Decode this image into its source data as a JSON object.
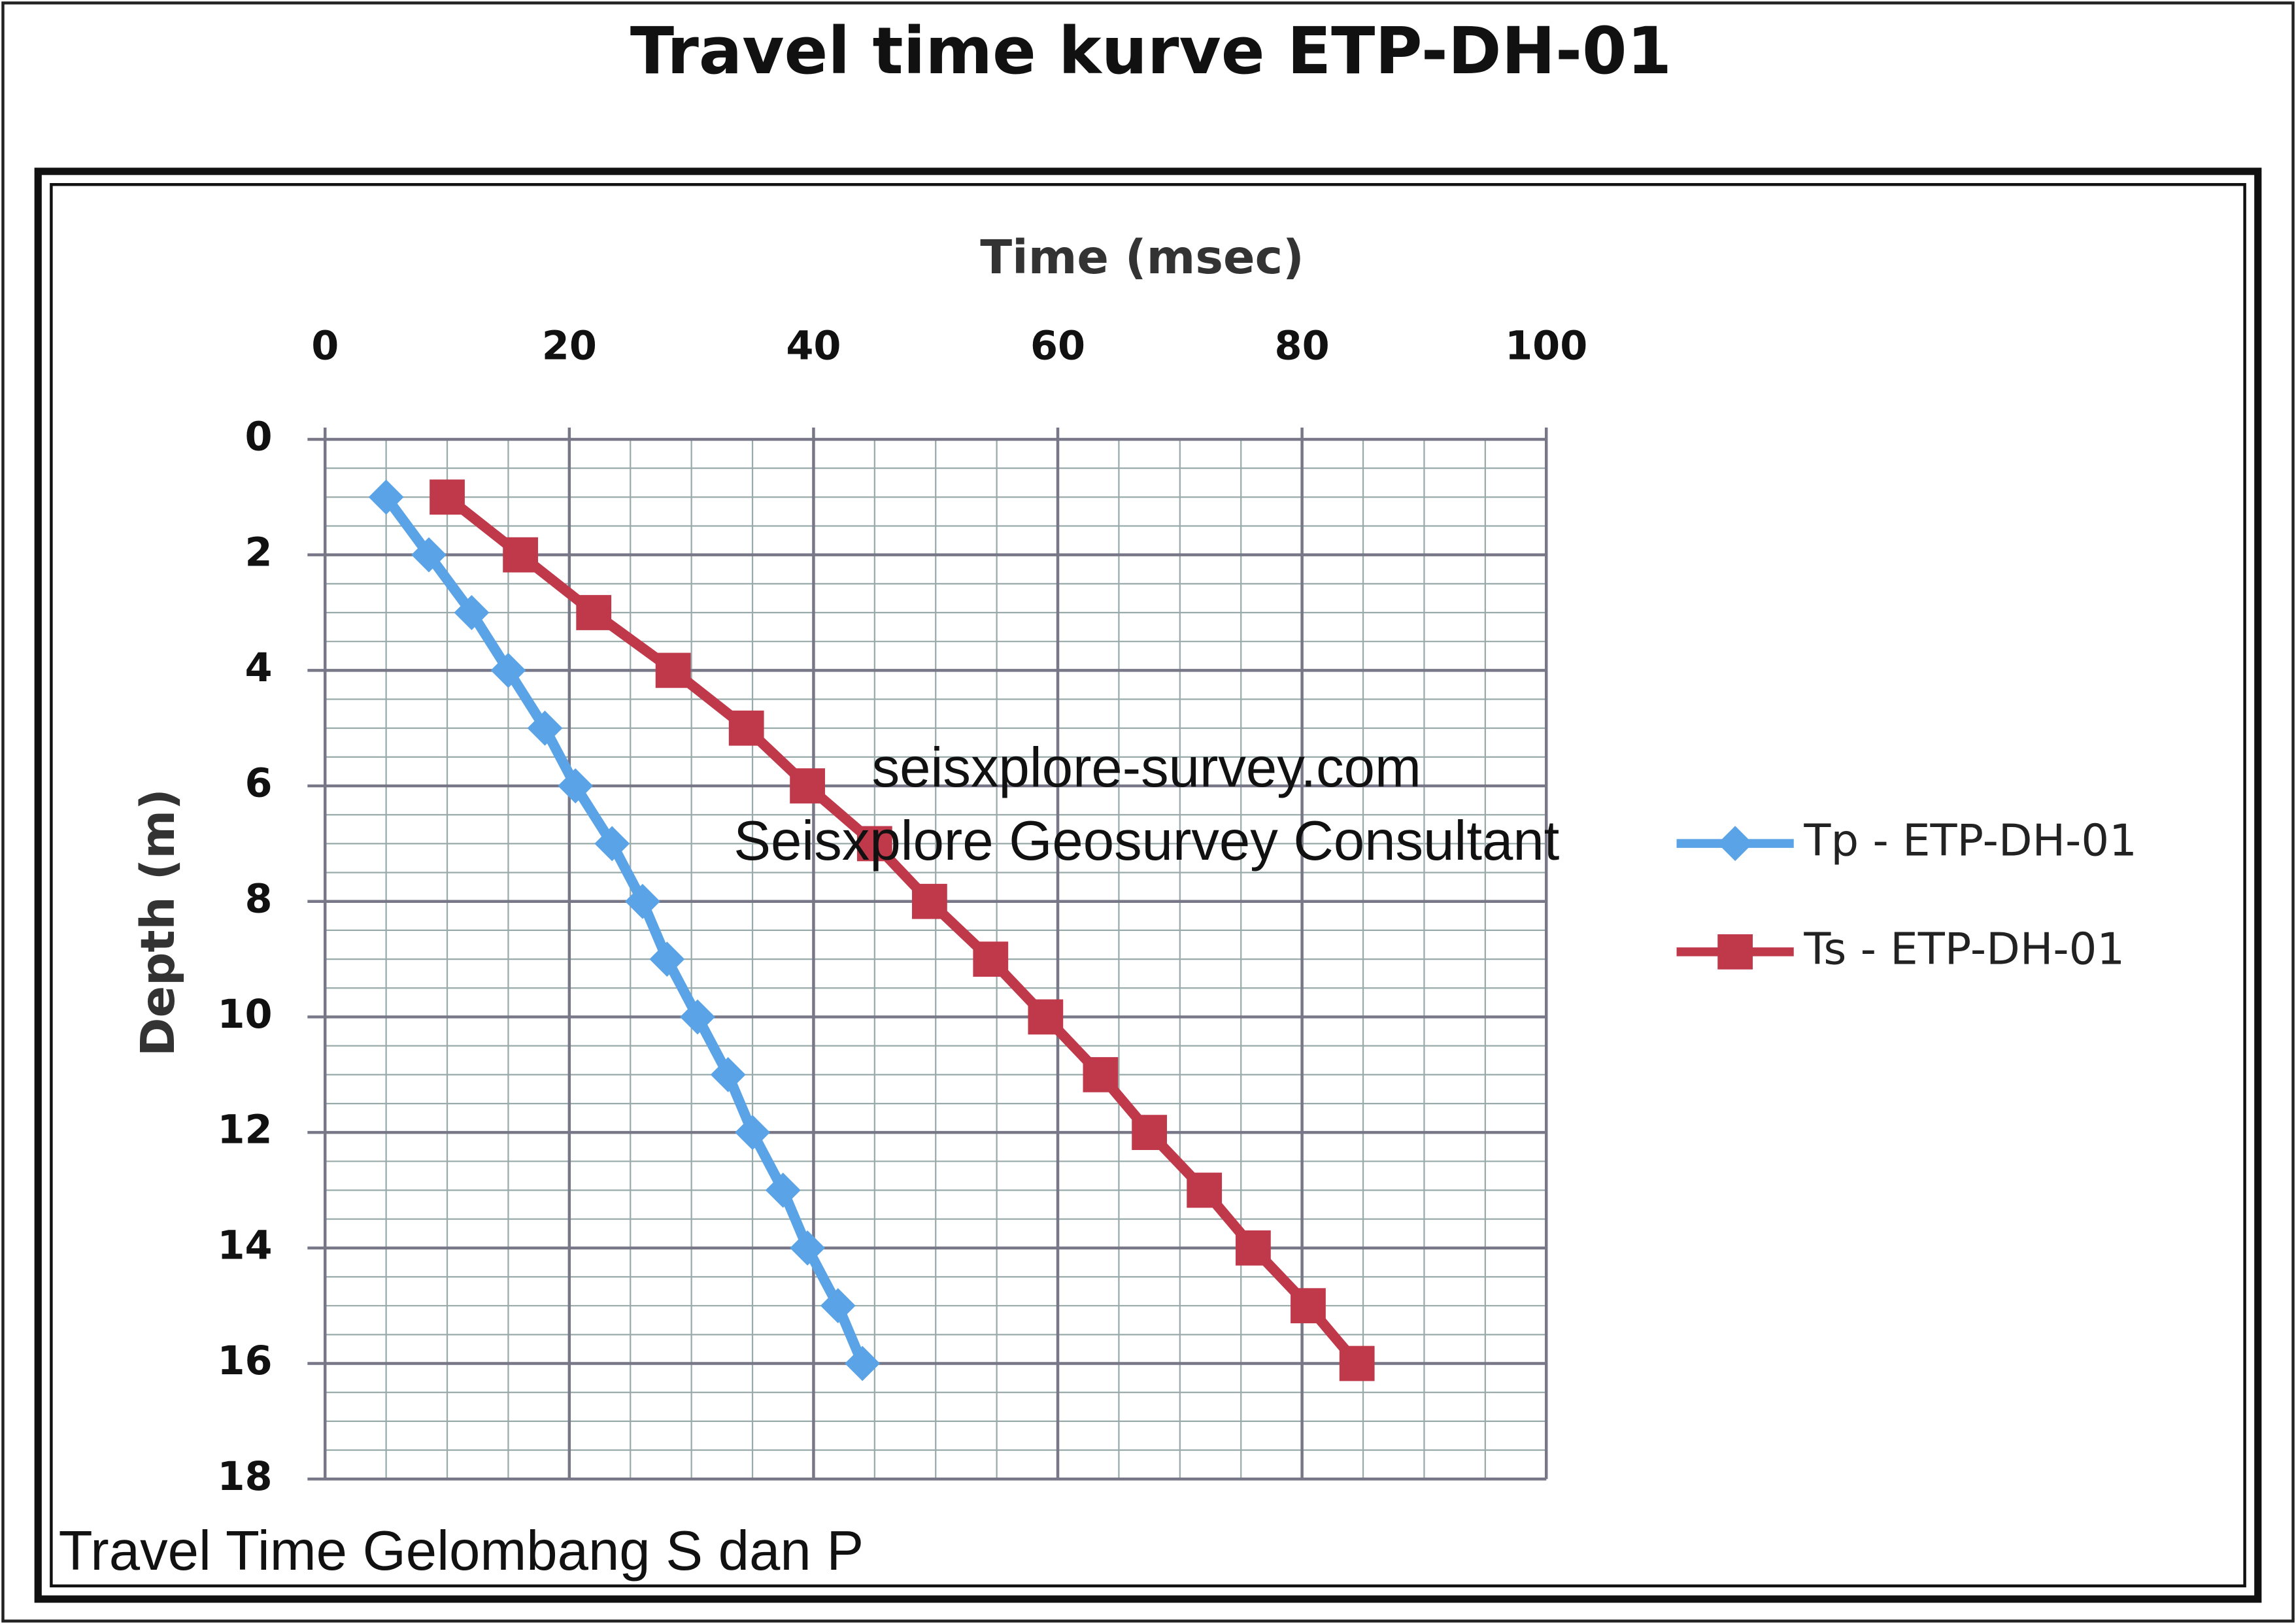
{
  "chart_data": {
    "type": "line",
    "title": "Travel time kurve ETP-DH-01",
    "x_label": "Time (msec)",
    "y_label": "Depth (m)",
    "annotations": [
      "seisxplore-survey.com",
      "Seisxplore Geosurvey Consultant",
      "Travel Time Gelombang S dan P"
    ],
    "xlim": [
      0,
      100
    ],
    "xticks": [
      0,
      20,
      40,
      60,
      80,
      100
    ],
    "ylim": [
      0,
      18
    ],
    "yticks": [
      0,
      2,
      4,
      6,
      8,
      10,
      12,
      14,
      16,
      18
    ],
    "y_inverted": true,
    "x_axis_position": "top",
    "grid": true,
    "minor_grid": {
      "x": 5,
      "y": 0.5
    },
    "legend": "right",
    "series": [
      {
        "name": "Tp - ETP-DH-01",
        "color": "#5aa3e6",
        "marker": "diamond",
        "x": [
          5,
          8.5,
          12,
          15,
          18,
          20.5,
          23.5,
          26,
          28,
          30.5,
          33,
          35,
          37.5,
          39.5,
          42,
          44
        ],
        "y": [
          1,
          2,
          3,
          4,
          5,
          6,
          7,
          8,
          9,
          10,
          11,
          12,
          13,
          14,
          15,
          16
        ]
      },
      {
        "name": "Ts - ETP-DH-01",
        "color": "#c0394b",
        "marker": "square",
        "x": [
          10,
          16,
          22,
          28.5,
          34.5,
          39.5,
          45,
          49.5,
          54.5,
          59,
          63.5,
          67.5,
          72,
          76,
          80.5,
          84.5
        ],
        "y": [
          1,
          2,
          3,
          4,
          5,
          6,
          7,
          8,
          9,
          10,
          11,
          12,
          13,
          14,
          15,
          16
        ]
      }
    ]
  }
}
